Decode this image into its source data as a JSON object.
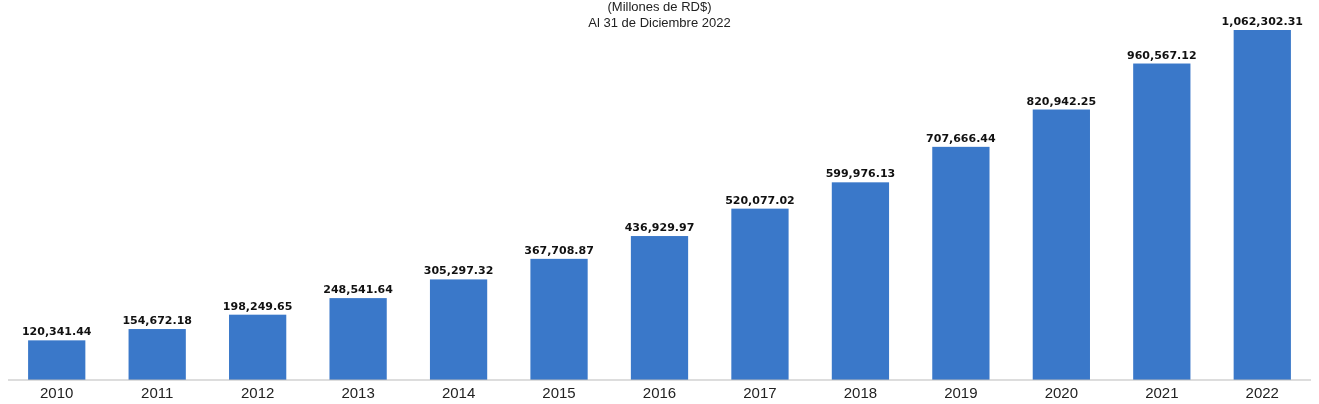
{
  "chart_data": {
    "type": "bar",
    "title": "(Millones de RD$)",
    "subtitle": "Al 31 de Diciembre 2022",
    "categories": [
      "2010",
      "2011",
      "2012",
      "2013",
      "2014",
      "2015",
      "2016",
      "2017",
      "2018",
      "2019",
      "2020",
      "2021",
      "2022"
    ],
    "values": [
      120341.44,
      154672.18,
      198249.65,
      248541.64,
      305297.32,
      367708.87,
      436929.97,
      520077.02,
      599976.13,
      707666.44,
      820942.25,
      960567.12,
      1062302.31
    ],
    "value_labels": [
      "120,341.44",
      "154,672.18",
      "198,249.65",
      "248,541.64",
      "305,297.32",
      "367,708.87",
      "436,929.97",
      "520,077.02",
      "599,976.13",
      "707,666.44",
      "820,942.25",
      "960,567.12",
      "1,062,302.31"
    ],
    "color": "#3a78c9"
  }
}
